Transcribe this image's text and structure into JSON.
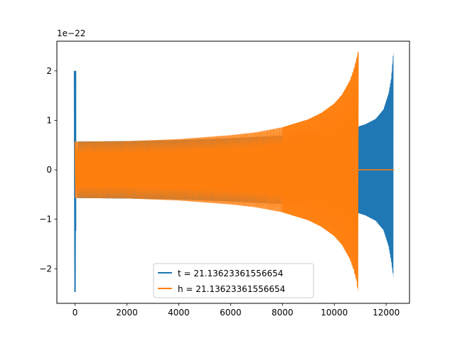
{
  "chart_data": {
    "type": "line",
    "title": "",
    "xlabel": "",
    "ylabel": "",
    "xlim": [
      -700,
      12900
    ],
    "ylim": [
      -2.7,
      2.6
    ],
    "y_scale_label": "1e−22",
    "x_ticks": [
      0,
      2000,
      4000,
      6000,
      8000,
      10000,
      12000
    ],
    "x_tick_labels": [
      "0",
      "2000",
      "4000",
      "6000",
      "8000",
      "10000",
      "12000"
    ],
    "y_ticks": [
      -2,
      -1,
      0,
      1,
      2
    ],
    "y_tick_labels": [
      "−2",
      "−1",
      "0",
      "1",
      "2"
    ],
    "grid": false,
    "legend": {
      "placement": "lower-center"
    },
    "series": [
      {
        "name": "t = 21.13623361556654",
        "color": "#1f77b4",
        "description": "spike near x=0 between -2.45 and 2.0; oscillation ~±0.57 growing to envelope ±0.87 at x≈10900; chirp rising to +2.38 / -2.18 at x≈12300",
        "spike_start": {
          "x": [
            -20,
            20
          ],
          "y": [
            -2.47,
            2.0
          ]
        },
        "envelope": {
          "x": [
            100,
            2000,
            4000,
            6000,
            8000,
            9000,
            10000,
            10500,
            10900,
            11200,
            11600,
            11900,
            12100,
            12200,
            12280
          ],
          "upper": [
            0.57,
            0.58,
            0.6,
            0.64,
            0.69,
            0.73,
            0.78,
            0.81,
            0.87,
            0.92,
            1.03,
            1.22,
            1.55,
            1.85,
            2.38
          ],
          "lower": [
            -0.57,
            -0.58,
            -0.6,
            -0.64,
            -0.69,
            -0.73,
            -0.78,
            -0.81,
            -0.87,
            -0.92,
            -1.03,
            -1.22,
            -1.55,
            -1.85,
            -2.18
          ]
        }
      },
      {
        "name": "h = 21.13623361556654",
        "color": "#ff7f0e",
        "description": "oscillation from x≈0, envelope ±0.57 rising to +2.38 / -2.47 at x≈10900, then flat at 0 to x≈12300",
        "envelope": {
          "x": [
            0,
            2000,
            4000,
            6000,
            7000,
            8000,
            9000,
            9500,
            10000,
            10300,
            10600,
            10750,
            10850,
            10920
          ],
          "upper": [
            0.57,
            0.58,
            0.62,
            0.7,
            0.76,
            0.86,
            1.02,
            1.15,
            1.34,
            1.52,
            1.8,
            2.02,
            2.22,
            2.38
          ],
          "lower": [
            -0.57,
            -0.58,
            -0.62,
            -0.7,
            -0.76,
            -0.86,
            -1.02,
            -1.15,
            -1.34,
            -1.52,
            -1.8,
            -2.02,
            -2.22,
            -2.47
          ]
        },
        "flat_after": {
          "x": [
            10920,
            12300
          ],
          "y": 0
        }
      }
    ]
  }
}
